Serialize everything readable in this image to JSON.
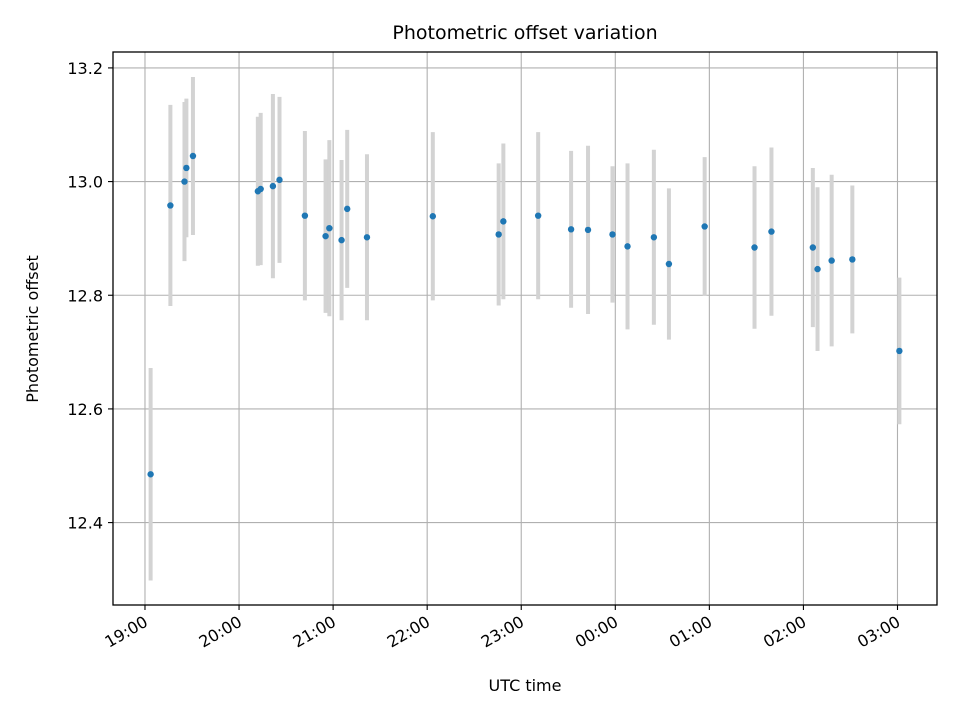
{
  "chart_data": {
    "type": "scatter",
    "title": "Photometric offset variation",
    "xlabel": "UTC time",
    "ylabel": "Photometric offset",
    "x_unit": "UTC time (hours, continuing past midnight as 24+)",
    "xlim": [
      18.66,
      27.42
    ],
    "ylim": [
      12.255,
      13.228
    ],
    "x_ticks": [
      {
        "value": 19,
        "label": "19:00"
      },
      {
        "value": 20,
        "label": "20:00"
      },
      {
        "value": 21,
        "label": "21:00"
      },
      {
        "value": 22,
        "label": "22:00"
      },
      {
        "value": 23,
        "label": "23:00"
      },
      {
        "value": 24,
        "label": "00:00"
      },
      {
        "value": 25,
        "label": "01:00"
      },
      {
        "value": 26,
        "label": "02:00"
      },
      {
        "value": 27,
        "label": "03:00"
      }
    ],
    "y_ticks": [
      {
        "value": 12.4,
        "label": "12.4"
      },
      {
        "value": 12.6,
        "label": "12.6"
      },
      {
        "value": 12.8,
        "label": "12.8"
      },
      {
        "value": 13.0,
        "label": "13.0"
      },
      {
        "value": 13.2,
        "label": "13.2"
      }
    ],
    "grid": true,
    "point_color": "#1f77b4",
    "errorbar_color": "#d3d3d3",
    "points": [
      {
        "x": 19.06,
        "y": 12.485,
        "err": 0.187
      },
      {
        "x": 19.27,
        "y": 12.958,
        "err": 0.177
      },
      {
        "x": 19.42,
        "y": 13.0,
        "err": 0.14
      },
      {
        "x": 19.44,
        "y": 13.024,
        "err": 0.122
      },
      {
        "x": 19.51,
        "y": 13.045,
        "err": 0.139
      },
      {
        "x": 20.2,
        "y": 12.983,
        "err": 0.131
      },
      {
        "x": 20.23,
        "y": 12.987,
        "err": 0.134
      },
      {
        "x": 20.36,
        "y": 12.992,
        "err": 0.162
      },
      {
        "x": 20.43,
        "y": 13.003,
        "err": 0.146
      },
      {
        "x": 20.7,
        "y": 12.94,
        "err": 0.149
      },
      {
        "x": 20.92,
        "y": 12.904,
        "err": 0.135
      },
      {
        "x": 20.96,
        "y": 12.918,
        "err": 0.155
      },
      {
        "x": 21.09,
        "y": 12.897,
        "err": 0.141
      },
      {
        "x": 21.15,
        "y": 12.952,
        "err": 0.139
      },
      {
        "x": 21.36,
        "y": 12.902,
        "err": 0.146
      },
      {
        "x": 22.06,
        "y": 12.939,
        "err": 0.148
      },
      {
        "x": 22.76,
        "y": 12.907,
        "err": 0.125
      },
      {
        "x": 22.81,
        "y": 12.93,
        "err": 0.137
      },
      {
        "x": 23.18,
        "y": 12.94,
        "err": 0.147
      },
      {
        "x": 23.53,
        "y": 12.916,
        "err": 0.138
      },
      {
        "x": 23.71,
        "y": 12.915,
        "err": 0.148
      },
      {
        "x": 23.97,
        "y": 12.907,
        "err": 0.12
      },
      {
        "x": 24.13,
        "y": 12.886,
        "err": 0.146
      },
      {
        "x": 24.41,
        "y": 12.902,
        "err": 0.154
      },
      {
        "x": 24.57,
        "y": 12.855,
        "err": 0.133
      },
      {
        "x": 24.95,
        "y": 12.921,
        "err": 0.122
      },
      {
        "x": 25.48,
        "y": 12.884,
        "err": 0.143
      },
      {
        "x": 25.66,
        "y": 12.912,
        "err": 0.148
      },
      {
        "x": 26.1,
        "y": 12.884,
        "err": 0.14
      },
      {
        "x": 26.15,
        "y": 12.846,
        "err": 0.144
      },
      {
        "x": 26.3,
        "y": 12.861,
        "err": 0.151
      },
      {
        "x": 26.52,
        "y": 12.863,
        "err": 0.13
      },
      {
        "x": 27.02,
        "y": 12.702,
        "err": 0.129
      }
    ]
  }
}
